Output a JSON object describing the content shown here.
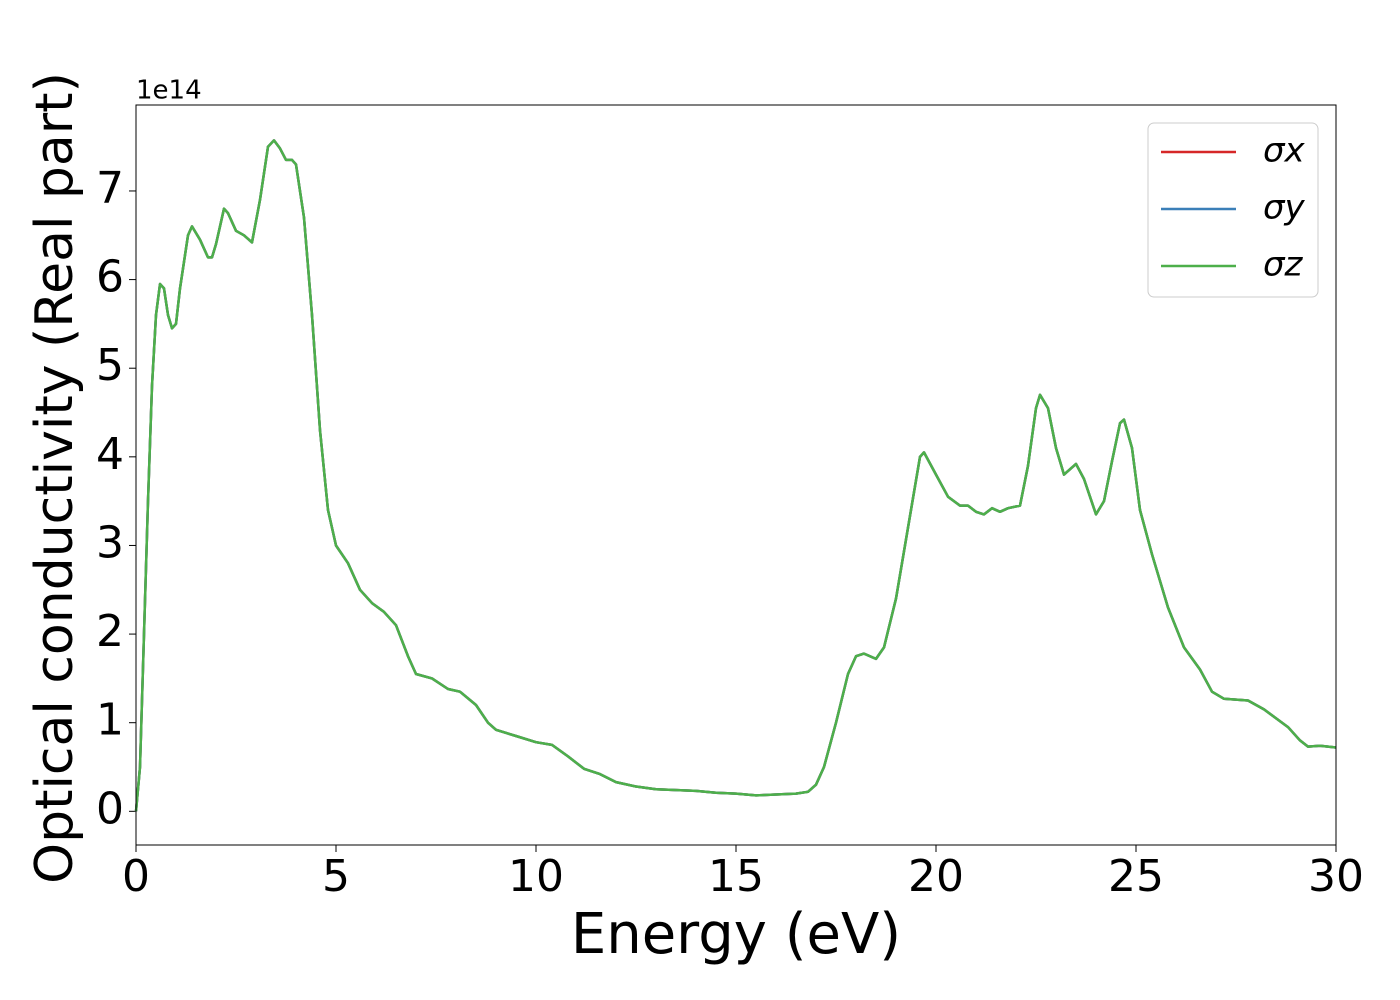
{
  "chart_data": {
    "type": "line",
    "xlabel": "Energy (eV)",
    "ylabel": "Optical conductivity (Real part)",
    "offset_text": "1e14",
    "xlim": [
      0,
      30
    ],
    "ylim": [
      -0.38,
      7.97
    ],
    "xticks": [
      0,
      5,
      10,
      15,
      20,
      25,
      30
    ],
    "yticks": [
      0,
      1,
      2,
      3,
      4,
      5,
      6,
      7
    ],
    "legend": "upper right",
    "x": [
      0,
      0.1,
      0.2,
      0.3,
      0.4,
      0.5,
      0.6,
      0.7,
      0.8,
      0.9,
      1.0,
      1.1,
      1.3,
      1.4,
      1.6,
      1.8,
      1.9,
      2.0,
      2.2,
      2.3,
      2.5,
      2.7,
      2.9,
      3.1,
      3.3,
      3.45,
      3.6,
      3.75,
      3.9,
      4.0,
      4.2,
      4.4,
      4.6,
      4.8,
      5.0,
      5.3,
      5.6,
      5.9,
      6.2,
      6.5,
      6.8,
      7.0,
      7.4,
      7.8,
      8.1,
      8.5,
      8.8,
      9.0,
      9.5,
      10.0,
      10.4,
      10.8,
      11.2,
      11.6,
      12.0,
      12.5,
      13.0,
      14.0,
      14.5,
      15.0,
      15.5,
      16.0,
      16.5,
      16.8,
      17.0,
      17.2,
      17.5,
      17.8,
      18.0,
      18.2,
      18.5,
      18.7,
      19.0,
      19.3,
      19.6,
      19.7,
      20.0,
      20.3,
      20.6,
      20.8,
      21.0,
      21.2,
      21.4,
      21.6,
      21.8,
      22.1,
      22.3,
      22.5,
      22.6,
      22.8,
      23.0,
      23.2,
      23.5,
      23.7,
      24.0,
      24.2,
      24.4,
      24.6,
      24.7,
      24.9,
      25.1,
      25.4,
      25.8,
      26.2,
      26.6,
      26.9,
      27.2,
      27.8,
      28.2,
      28.5,
      28.8,
      29.1,
      29.3,
      29.6,
      30.0
    ],
    "series": [
      {
        "name": "σx",
        "color": "#d62728",
        "values": [
          0,
          0.5,
          2.0,
          3.5,
          4.8,
          5.6,
          5.95,
          5.9,
          5.6,
          5.45,
          5.5,
          5.9,
          6.5,
          6.6,
          6.45,
          6.25,
          6.25,
          6.4,
          6.8,
          6.75,
          6.55,
          6.5,
          6.42,
          6.9,
          7.5,
          7.57,
          7.48,
          7.35,
          7.35,
          7.3,
          6.7,
          5.6,
          4.3,
          3.4,
          3.0,
          2.8,
          2.5,
          2.35,
          2.25,
          2.1,
          1.75,
          1.55,
          1.5,
          1.38,
          1.35,
          1.2,
          1.0,
          0.92,
          0.85,
          0.78,
          0.75,
          0.62,
          0.48,
          0.42,
          0.33,
          0.28,
          0.25,
          0.23,
          0.21,
          0.2,
          0.18,
          0.19,
          0.2,
          0.22,
          0.3,
          0.5,
          1.0,
          1.55,
          1.75,
          1.78,
          1.72,
          1.85,
          2.4,
          3.2,
          4.0,
          4.05,
          3.8,
          3.55,
          3.45,
          3.45,
          3.38,
          3.35,
          3.42,
          3.38,
          3.42,
          3.45,
          3.9,
          4.55,
          4.7,
          4.55,
          4.1,
          3.8,
          3.92,
          3.75,
          3.35,
          3.5,
          3.95,
          4.38,
          4.42,
          4.1,
          3.4,
          2.9,
          2.3,
          1.85,
          1.6,
          1.35,
          1.27,
          1.25,
          1.15,
          1.05,
          0.95,
          0.8,
          0.73,
          0.74,
          0.72
        ]
      },
      {
        "name": "σy",
        "color": "#3b7fb8",
        "values": [
          0,
          0.5,
          2.0,
          3.5,
          4.8,
          5.6,
          5.95,
          5.9,
          5.6,
          5.45,
          5.5,
          5.9,
          6.5,
          6.6,
          6.45,
          6.25,
          6.25,
          6.4,
          6.8,
          6.75,
          6.55,
          6.5,
          6.42,
          6.9,
          7.5,
          7.57,
          7.48,
          7.35,
          7.35,
          7.3,
          6.7,
          5.6,
          4.3,
          3.4,
          3.0,
          2.8,
          2.5,
          2.35,
          2.25,
          2.1,
          1.75,
          1.55,
          1.5,
          1.38,
          1.35,
          1.2,
          1.0,
          0.92,
          0.85,
          0.78,
          0.75,
          0.62,
          0.48,
          0.42,
          0.33,
          0.28,
          0.25,
          0.23,
          0.21,
          0.2,
          0.18,
          0.19,
          0.2,
          0.22,
          0.3,
          0.5,
          1.0,
          1.55,
          1.75,
          1.78,
          1.72,
          1.85,
          2.4,
          3.2,
          4.0,
          4.05,
          3.8,
          3.55,
          3.45,
          3.45,
          3.38,
          3.35,
          3.42,
          3.38,
          3.42,
          3.45,
          3.9,
          4.55,
          4.7,
          4.55,
          4.1,
          3.8,
          3.92,
          3.75,
          3.35,
          3.5,
          3.95,
          4.38,
          4.42,
          4.1,
          3.4,
          2.9,
          2.3,
          1.85,
          1.6,
          1.35,
          1.27,
          1.25,
          1.15,
          1.05,
          0.95,
          0.8,
          0.73,
          0.74,
          0.72
        ]
      },
      {
        "name": "σz",
        "color": "#4daf4a",
        "values": [
          0,
          0.5,
          2.0,
          3.5,
          4.8,
          5.6,
          5.95,
          5.9,
          5.6,
          5.45,
          5.5,
          5.9,
          6.5,
          6.6,
          6.45,
          6.25,
          6.25,
          6.4,
          6.8,
          6.75,
          6.55,
          6.5,
          6.42,
          6.9,
          7.5,
          7.57,
          7.48,
          7.35,
          7.35,
          7.3,
          6.7,
          5.6,
          4.3,
          3.4,
          3.0,
          2.8,
          2.5,
          2.35,
          2.25,
          2.1,
          1.75,
          1.55,
          1.5,
          1.38,
          1.35,
          1.2,
          1.0,
          0.92,
          0.85,
          0.78,
          0.75,
          0.62,
          0.48,
          0.42,
          0.33,
          0.28,
          0.25,
          0.23,
          0.21,
          0.2,
          0.18,
          0.19,
          0.2,
          0.22,
          0.3,
          0.5,
          1.0,
          1.55,
          1.75,
          1.78,
          1.72,
          1.85,
          2.4,
          3.2,
          4.0,
          4.05,
          3.8,
          3.55,
          3.45,
          3.45,
          3.38,
          3.35,
          3.42,
          3.38,
          3.42,
          3.45,
          3.9,
          4.55,
          4.7,
          4.55,
          4.1,
          3.8,
          3.92,
          3.75,
          3.35,
          3.5,
          3.95,
          4.38,
          4.42,
          4.1,
          3.4,
          2.9,
          2.3,
          1.85,
          1.6,
          1.35,
          1.27,
          1.25,
          1.15,
          1.05,
          0.95,
          0.8,
          0.73,
          0.74,
          0.72
        ]
      }
    ]
  }
}
